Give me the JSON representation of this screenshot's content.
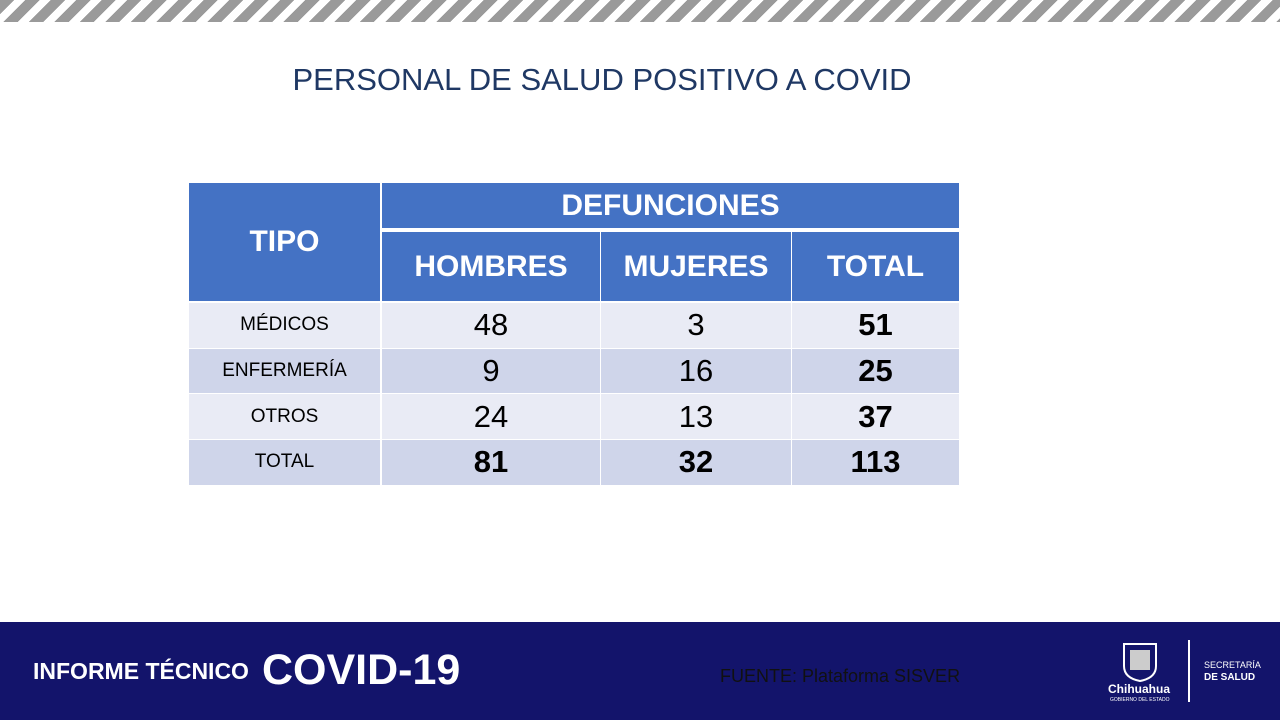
{
  "title": "PERSONAL DE SALUD POSITIVO A COVID",
  "table": {
    "header": {
      "tipo": "TIPO",
      "group": "DEFUNCIONES",
      "columns": [
        "HOMBRES",
        "MUJERES",
        "TOTAL"
      ]
    },
    "rows": [
      [
        "MÉDICOS",
        48,
        3,
        51
      ],
      [
        "ENFERMERÍA",
        9,
        16,
        25
      ],
      [
        "OTROS",
        24,
        13,
        37
      ],
      [
        "TOTAL",
        81,
        32,
        113
      ]
    ]
  },
  "footer": {
    "report": "INFORME TÉCNICO",
    "covid": "COVID-19",
    "source": "FUENTE: Plataforma SISVER",
    "logo_name": "Chihuahua",
    "logo_sub": "GOBIERNO DEL ESTADO",
    "dept_line1": "SECRETARÍA",
    "dept_line2": "DE SALUD"
  }
}
